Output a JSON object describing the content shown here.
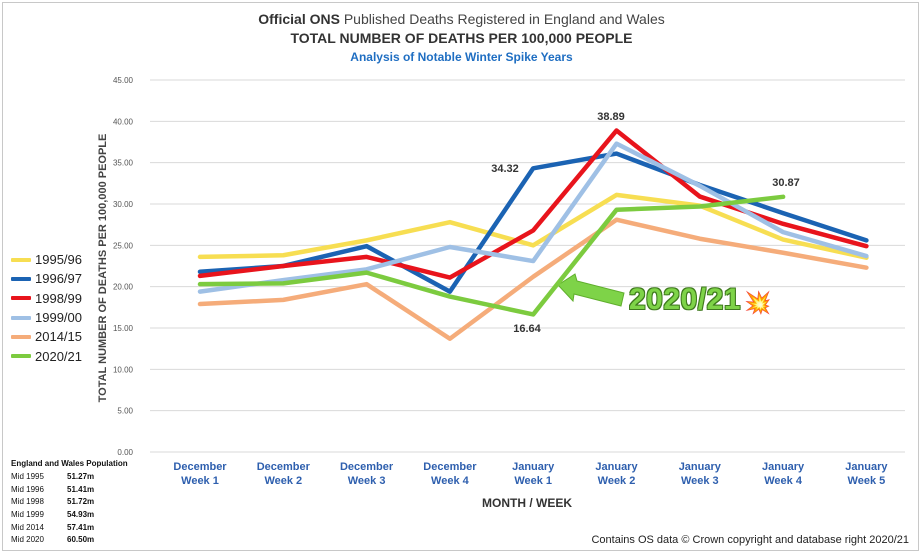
{
  "header": {
    "title_bold": "Official ONS",
    "title_rest": " Published Deaths Registered in England and Wales",
    "subtitle": "TOTAL NUMBER OF DEATHS PER 100,000 PEOPLE",
    "subsubtitle": "Analysis of Notable Winter Spike Years"
  },
  "chart_data": {
    "type": "line",
    "ylabel": "TOTAL NUMBER OF DEATHS PER 100,000 PEOPLE",
    "xlabel": "MONTH / WEEK",
    "ylim": [
      0,
      45
    ],
    "yticks": [
      "0.00",
      "5.00",
      "10.00",
      "15.00",
      "20.00",
      "25.00",
      "30.00",
      "35.00",
      "40.00",
      "45.00"
    ],
    "categories": [
      [
        "December",
        "Week 1"
      ],
      [
        "December",
        "Week 2"
      ],
      [
        "December",
        "Week 3"
      ],
      [
        "December",
        "Week 4"
      ],
      [
        "January",
        "Week 1"
      ],
      [
        "January",
        "Week 2"
      ],
      [
        "January",
        "Week 3"
      ],
      [
        "January",
        "Week 4"
      ],
      [
        "January",
        "Week 5"
      ]
    ],
    "grid": true,
    "legend_position": "left",
    "series": [
      {
        "name": "1995/96",
        "color": "#f7de52",
        "values": [
          23.6,
          23.8,
          25.6,
          27.8,
          25.0,
          31.1,
          29.8,
          25.7,
          23.5
        ]
      },
      {
        "name": "1996/97",
        "color": "#1b63b3",
        "values": [
          21.8,
          22.5,
          24.9,
          19.4,
          34.32,
          36.1,
          32.3,
          28.9,
          25.6
        ]
      },
      {
        "name": "1998/99",
        "color": "#e8141c",
        "values": [
          21.3,
          22.5,
          23.6,
          21.1,
          26.8,
          38.89,
          30.9,
          27.6,
          24.9
        ]
      },
      {
        "name": "1999/00",
        "color": "#9fc0e5",
        "values": [
          19.4,
          20.8,
          22.1,
          24.8,
          23.1,
          37.3,
          32.2,
          26.6,
          23.7
        ]
      },
      {
        "name": "2014/15",
        "color": "#f5ac7a",
        "values": [
          17.9,
          18.4,
          20.3,
          13.7,
          21.2,
          28.1,
          25.8,
          24.1,
          22.3
        ]
      },
      {
        "name": "2020/21",
        "color": "#7ccb3f",
        "values": [
          20.3,
          20.4,
          21.7,
          18.8,
          16.64,
          29.3,
          29.7,
          30.87,
          null
        ]
      }
    ],
    "data_labels": [
      {
        "text": "34.32"
      },
      {
        "text": "38.89"
      },
      {
        "text": "30.87"
      },
      {
        "text": "16.64"
      }
    ]
  },
  "annotation": {
    "text": "2020/21",
    "icon": "explosion-icon",
    "icon_glyph": "💥",
    "color": "#7ed348"
  },
  "population": {
    "title": "England and Wales Population",
    "rows": [
      {
        "year": "Mid 1995",
        "value": "51.27m"
      },
      {
        "year": "Mid 1996",
        "value": "51.41m"
      },
      {
        "year": "Mid 1998",
        "value": "51.72m"
      },
      {
        "year": "Mid 1999",
        "value": "54.93m"
      },
      {
        "year": "Mid 2014",
        "value": "57.41m"
      },
      {
        "year": "Mid 2020",
        "value": "60.50m"
      }
    ]
  },
  "footer": {
    "text": "Contains OS data © Crown copyright and database right 2020/21"
  }
}
